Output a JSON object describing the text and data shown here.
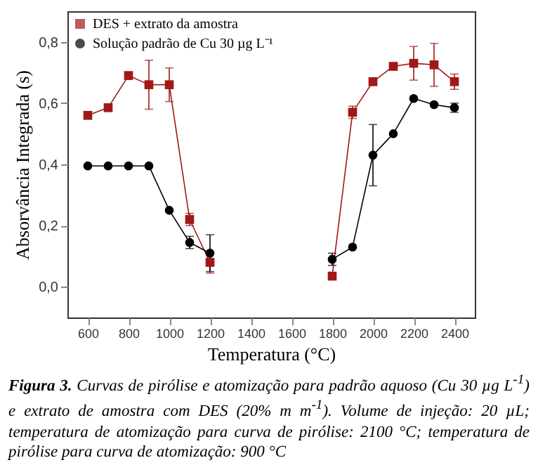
{
  "chart_data": {
    "type": "line",
    "xlabel": "Temperatura (°C)",
    "ylabel": "Absorvância Integrada (s)",
    "x": [
      600,
      700,
      800,
      900,
      1000,
      1100,
      1200,
      1500,
      1800,
      1900,
      2000,
      2100,
      2200,
      2300,
      2400
    ],
    "xlim": [
      500,
      2500
    ],
    "xticks": [
      600,
      800,
      1000,
      1200,
      1400,
      1600,
      1800,
      2000,
      2200,
      2400
    ],
    "ylim": [
      -0.1,
      0.9
    ],
    "yticks": [
      {
        "value": 0,
        "label": "0,0"
      },
      {
        "value": 0.2,
        "label": "0,2"
      },
      {
        "value": 0.4,
        "label": "0,4"
      },
      {
        "value": 0.6,
        "label": "0,6"
      },
      {
        "value": 0.8,
        "label": "0,8"
      }
    ],
    "grid": false,
    "legend": "top left",
    "series": [
      {
        "name": "DES + extrato da amostra",
        "color": "#a01818",
        "marker": "square",
        "values": [
          0.56,
          0.585,
          0.69,
          0.66,
          0.66,
          0.22,
          0.08,
          null,
          0.035,
          0.57,
          0.67,
          0.72,
          0.73,
          0.725,
          0.67
        ],
        "errors": [
          null,
          null,
          null,
          0.08,
          0.055,
          0.02,
          0.035,
          null,
          null,
          0.02,
          0.01,
          null,
          0.055,
          0.07,
          0.025
        ]
      },
      {
        "name": "Solução padrão de Cu 30 µg L⁻¹",
        "color": "#000000",
        "marker": "circle",
        "values": [
          0.395,
          0.395,
          0.395,
          0.395,
          0.25,
          0.145,
          0.11,
          null,
          0.09,
          0.13,
          0.43,
          0.5,
          0.615,
          0.595,
          0.585
        ],
        "errors": [
          null,
          null,
          null,
          null,
          null,
          0.02,
          0.06,
          null,
          0.02,
          null,
          0.1,
          null,
          null,
          null,
          0.015
        ]
      }
    ],
    "annotations": [
      "**Figura 3.** Curvas de pirólise e atomização para padrão aquoso (Cu 30 µg L$^{-1}$) e extrato de amostra com DES (20% m m$^{-1}$). Volume de injeção: 20 µL; temperatura de atomização para curva de pirólise: 2100 °C; temperatura de pirólise para curva de atomização: 900 °C"
    ]
  }
}
